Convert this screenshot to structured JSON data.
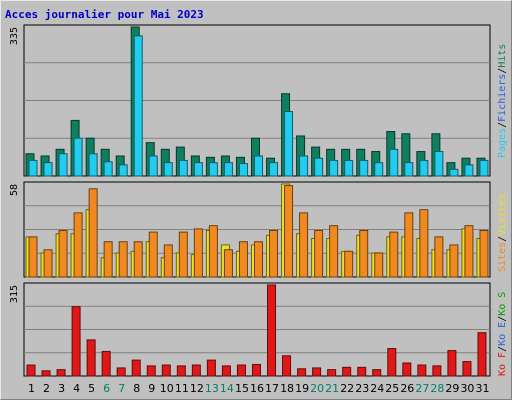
{
  "title": "Acces journalier pour Mai 2023",
  "colors": {
    "hits": "#0f7f5f",
    "files": "#22ccee",
    "pages": "#22ccee",
    "visits": "#f0e020",
    "sites": "#f08a20",
    "kb": "#e01818",
    "weekday": "#000000",
    "weekend": "#00806a"
  },
  "chart_data": [
    {
      "type": "bar",
      "name": "hits_files_pages",
      "axis_max_label": "335",
      "ylim": [
        0,
        335
      ],
      "legend": [
        "Pages",
        "/",
        "Fichiers",
        "/",
        "Hits"
      ],
      "legend_colors": [
        "#22ccee",
        "#000000",
        "#2060e0",
        "#000000",
        "#0f7f5f"
      ],
      "categories": [
        "1",
        "2",
        "3",
        "4",
        "5",
        "6",
        "7",
        "8",
        "9",
        "10",
        "11",
        "12",
        "13",
        "14",
        "15",
        "16",
        "17",
        "18",
        "19",
        "20",
        "21",
        "22",
        "23",
        "24",
        "25",
        "26",
        "27",
        "28",
        "29",
        "30",
        "31"
      ],
      "series": [
        {
          "name": "Hits",
          "values": [
            50,
            45,
            60,
            125,
            85,
            60,
            45,
            335,
            75,
            60,
            65,
            45,
            42,
            45,
            42,
            85,
            40,
            185,
            90,
            65,
            60,
            60,
            60,
            55,
            100,
            95,
            55,
            95,
            30,
            40,
            40
          ]
        },
        {
          "name": "Fichiers",
          "values": [
            35,
            30,
            50,
            85,
            50,
            32,
            25,
            315,
            45,
            30,
            35,
            30,
            30,
            30,
            28,
            45,
            30,
            145,
            45,
            40,
            35,
            35,
            35,
            30,
            60,
            30,
            35,
            55,
            15,
            25,
            35
          ]
        }
      ]
    },
    {
      "type": "bar",
      "name": "visits_sites",
      "axis_max_label": "58",
      "ylim": [
        0,
        58
      ],
      "legend": [
        "Sites",
        "/",
        "Visites"
      ],
      "legend_colors": [
        "#f08a20",
        "#000000",
        "#f0e020"
      ],
      "categories": [
        "1",
        "2",
        "3",
        "4",
        "5",
        "6",
        "7",
        "8",
        "9",
        "10",
        "11",
        "12",
        "13",
        "14",
        "15",
        "16",
        "17",
        "18",
        "19",
        "20",
        "21",
        "22",
        "23",
        "24",
        "25",
        "26",
        "27",
        "28",
        "29",
        "30",
        "31"
      ],
      "series": [
        {
          "name": "Visites",
          "values": [
            25,
            15,
            27,
            27,
            42,
            12,
            15,
            16,
            22,
            12,
            15,
            14,
            29,
            20,
            16,
            20,
            26,
            58,
            27,
            24,
            24,
            16,
            26,
            15,
            25,
            25,
            24,
            17,
            17,
            30,
            24
          ]
        },
        {
          "name": "Sites",
          "values": [
            25,
            17,
            29,
            40,
            55,
            22,
            22,
            22,
            28,
            20,
            28,
            30,
            32,
            17,
            22,
            22,
            29,
            57,
            40,
            29,
            32,
            16,
            29,
            15,
            28,
            40,
            42,
            25,
            20,
            32,
            29
          ]
        }
      ]
    },
    {
      "type": "bar",
      "name": "kb",
      "axis_max_label": "315",
      "ylim": [
        0,
        315
      ],
      "legend": [
        "Ko F",
        "/",
        "Ko E",
        "/",
        "Ko S"
      ],
      "legend_colors": [
        "#e01818",
        "#000000",
        "#2060e0",
        "#000000",
        "#00a000"
      ],
      "categories": [
        "1",
        "2",
        "3",
        "4",
        "5",
        "6",
        "7",
        "8",
        "9",
        "10",
        "11",
        "12",
        "13",
        "14",
        "15",
        "16",
        "17",
        "18",
        "19",
        "20",
        "21",
        "22",
        "23",
        "24",
        "25",
        "26",
        "27",
        "28",
        "29",
        "30",
        "31"
      ],
      "series": [
        {
          "name": "Ko F",
          "values": [
            38,
            18,
            22,
            240,
            125,
            85,
            28,
            55,
            35,
            38,
            35,
            38,
            55,
            35,
            38,
            40,
            315,
            70,
            25,
            28,
            22,
            30,
            30,
            22,
            95,
            45,
            38,
            35,
            88,
            50,
            150
          ]
        }
      ]
    }
  ],
  "days": [
    {
      "label": "1",
      "weekend": false
    },
    {
      "label": "2",
      "weekend": false
    },
    {
      "label": "3",
      "weekend": false
    },
    {
      "label": "4",
      "weekend": false
    },
    {
      "label": "5",
      "weekend": false
    },
    {
      "label": "6",
      "weekend": true
    },
    {
      "label": "7",
      "weekend": true
    },
    {
      "label": "8",
      "weekend": false
    },
    {
      "label": "9",
      "weekend": false
    },
    {
      "label": "10",
      "weekend": false
    },
    {
      "label": "11",
      "weekend": false
    },
    {
      "label": "12",
      "weekend": false
    },
    {
      "label": "13",
      "weekend": true
    },
    {
      "label": "14",
      "weekend": true
    },
    {
      "label": "15",
      "weekend": false
    },
    {
      "label": "16",
      "weekend": false
    },
    {
      "label": "17",
      "weekend": false
    },
    {
      "label": "18",
      "weekend": false
    },
    {
      "label": "19",
      "weekend": false
    },
    {
      "label": "20",
      "weekend": true
    },
    {
      "label": "21",
      "weekend": true
    },
    {
      "label": "22",
      "weekend": false
    },
    {
      "label": "23",
      "weekend": false
    },
    {
      "label": "24",
      "weekend": false
    },
    {
      "label": "25",
      "weekend": false
    },
    {
      "label": "26",
      "weekend": false
    },
    {
      "label": "27",
      "weekend": true
    },
    {
      "label": "28",
      "weekend": true
    },
    {
      "label": "29",
      "weekend": false
    },
    {
      "label": "30",
      "weekend": false
    },
    {
      "label": "31",
      "weekend": false
    }
  ]
}
